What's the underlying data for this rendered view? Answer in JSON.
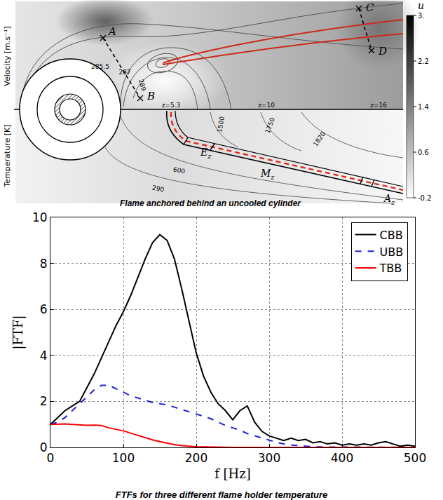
{
  "diagram": {
    "caption": "Flame anchored behind an uncooled cylinder",
    "upper_half_label": "Velocity [m.s⁻¹]",
    "lower_half_label": "Temperature [K]",
    "colorbar": {
      "label": "u",
      "range": [
        -0.2,
        3
      ],
      "ticks": [
        {
          "value": 3,
          "label": "3."
        },
        2.2,
        1.4,
        0.6,
        -0.2
      ]
    },
    "points": [
      "A",
      "B",
      "C",
      "D"
    ],
    "stations": [
      "z=5.3",
      "z=10",
      "z=16"
    ],
    "zones": [
      {
        "text": "E",
        "sub": "z"
      },
      {
        "text": "M",
        "sub": "z"
      },
      {
        "text": "A",
        "sub": "z"
      }
    ],
    "velocity_contour_labels": [
      285.5,
      287,
      289
    ],
    "temperature_contour_labels": [
      290,
      600,
      1500,
      1750,
      1820
    ]
  },
  "chart_data": {
    "type": "line",
    "title": "FTFs for three different flame holder temperature",
    "x_label": "f [Hz]",
    "y_label": "|FTF|",
    "x": [
      0,
      10,
      20,
      30,
      40,
      50,
      60,
      70,
      80,
      90,
      100,
      110,
      120,
      130,
      140,
      150,
      160,
      170,
      180,
      190,
      200,
      210,
      220,
      230,
      240,
      250,
      260,
      270,
      280,
      290,
      300,
      310,
      320,
      330,
      340,
      350,
      360,
      370,
      380,
      390,
      400,
      410,
      420,
      430,
      440,
      450,
      460,
      470,
      480,
      490,
      500
    ],
    "series": [
      {
        "name": "CBB",
        "color": "#000000",
        "line_style": "solid",
        "values": [
          1.0,
          1.3,
          1.6,
          1.8,
          2.0,
          2.6,
          3.2,
          3.9,
          4.6,
          5.3,
          5.9,
          6.6,
          7.4,
          8.2,
          8.9,
          9.25,
          9.0,
          8.2,
          6.9,
          5.5,
          4.1,
          3.1,
          2.4,
          1.9,
          1.6,
          1.2,
          1.6,
          1.8,
          1.1,
          0.7,
          0.5,
          0.4,
          0.3,
          0.4,
          0.3,
          0.35,
          0.2,
          0.25,
          0.15,
          0.2,
          0.1,
          0.15,
          0.1,
          0.15,
          0.1,
          0.2,
          0.25,
          0.15,
          0.05,
          0.1,
          0.05
        ]
      },
      {
        "name": "UBB",
        "color": "#1f1fe0",
        "line_style": "dashed",
        "values": [
          1.0,
          1.1,
          1.3,
          1.6,
          1.9,
          2.2,
          2.5,
          2.7,
          2.7,
          2.55,
          2.4,
          2.25,
          2.15,
          2.05,
          1.95,
          1.9,
          1.85,
          1.75,
          1.65,
          1.55,
          1.45,
          1.35,
          1.25,
          1.1,
          0.95,
          0.85,
          0.75,
          0.6,
          0.5,
          0.4,
          0.3,
          0.22,
          0.15,
          0.1,
          0.08,
          0.05,
          0.03,
          0.02,
          0.02,
          0.01,
          0.01,
          0,
          0,
          0,
          0,
          0,
          0,
          0,
          0,
          0,
          0
        ]
      },
      {
        "name": "TBB",
        "color": "#ff0000",
        "line_style": "solid",
        "values": [
          1.0,
          1.02,
          1.02,
          1.0,
          0.98,
          0.96,
          0.97,
          0.95,
          0.85,
          0.78,
          0.72,
          0.62,
          0.52,
          0.42,
          0.33,
          0.25,
          0.18,
          0.12,
          0.08,
          0.05,
          0.03,
          0.02,
          0.01,
          0.005,
          0,
          0,
          0,
          0,
          0,
          0,
          0,
          0,
          0,
          0,
          0,
          0,
          0,
          0,
          0,
          0,
          0,
          0,
          0,
          0,
          0,
          0,
          0,
          0,
          0,
          0,
          0
        ]
      }
    ],
    "xlim": [
      0,
      500
    ],
    "xticks": [
      0,
      100,
      200,
      300,
      400,
      500
    ],
    "ylim": [
      0,
      10
    ],
    "yticks": [
      0,
      2,
      4,
      6,
      8,
      10
    ],
    "grid": true,
    "legend": "upper right"
  }
}
